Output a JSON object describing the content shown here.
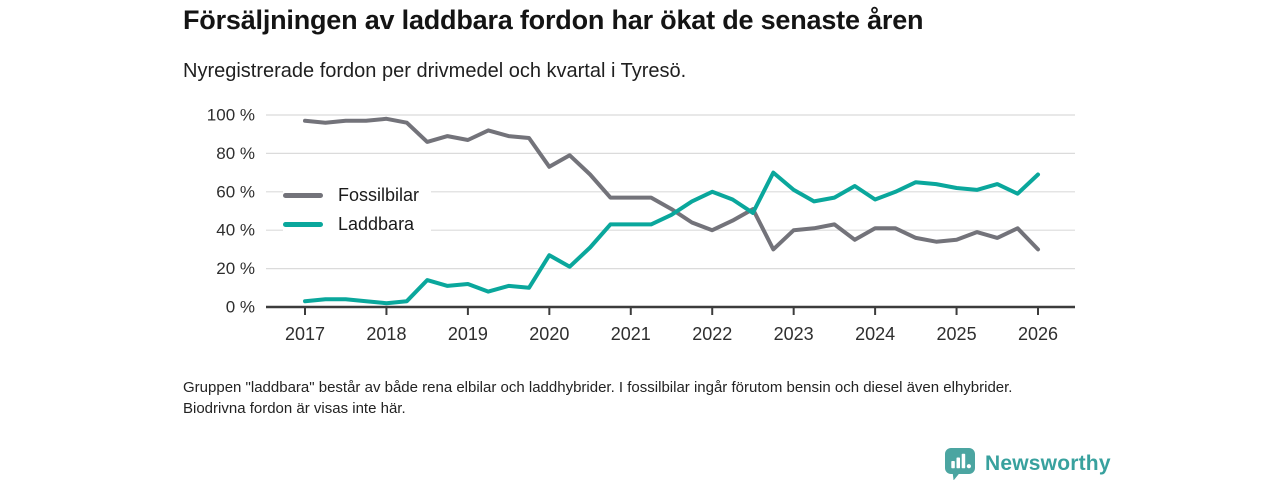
{
  "header": {
    "title": "Försäljningen av laddbara fordon har ökat de senaste åren",
    "subtitle": "Nyregistrerade fordon per drivmedel och kvartal i Tyresö."
  },
  "chart_data": {
    "type": "line",
    "x_start": "2017 Q1",
    "x_step": "quarter",
    "x_end": "2026 Q1",
    "x_tick_labels": [
      "2017",
      "2018",
      "2019",
      "2020",
      "2021",
      "2022",
      "2023",
      "2024",
      "2025",
      "2026"
    ],
    "y_tick_labels": [
      "0 %",
      "20 %",
      "40 %",
      "60 %",
      "80 %",
      "100 %"
    ],
    "ylim": [
      0,
      100
    ],
    "grid": "horizontal",
    "legend_position": "inside-left",
    "series": [
      {
        "name": "Fossilbilar",
        "color": "#73737a",
        "values": [
          97,
          96,
          97,
          97,
          98,
          96,
          86,
          89,
          87,
          92,
          89,
          88,
          73,
          79,
          69,
          57,
          57,
          57,
          51,
          44,
          40,
          45,
          51,
          30,
          40,
          41,
          43,
          35,
          41,
          41,
          36,
          34,
          35,
          39,
          36,
          41,
          30
        ]
      },
      {
        "name": "Laddbara",
        "color": "#0aa79c",
        "values": [
          3,
          4,
          4,
          3,
          2,
          3,
          14,
          11,
          12,
          8,
          11,
          10,
          27,
          21,
          31,
          43,
          43,
          43,
          48,
          55,
          60,
          56,
          49,
          70,
          61,
          55,
          57,
          63,
          56,
          60,
          65,
          64,
          62,
          61,
          64,
          59,
          69
        ]
      }
    ],
    "colors": {
      "axis": "#3c3c3c",
      "gridline": "#dbdbdb",
      "tick_label": "#2e2e2e"
    }
  },
  "footer": {
    "note": "Gruppen \"laddbara\" består av både rena elbilar och laddhybrider. I fossilbilar ingår förutom bensin och diesel även elhybrider. Biodrivna fordon är visas inte här."
  },
  "logo": {
    "text": "Newsworthy",
    "icon": "bar-chart-bubble-icon",
    "icon_color": "#4ba5a1",
    "text_color": "#38a19e"
  }
}
